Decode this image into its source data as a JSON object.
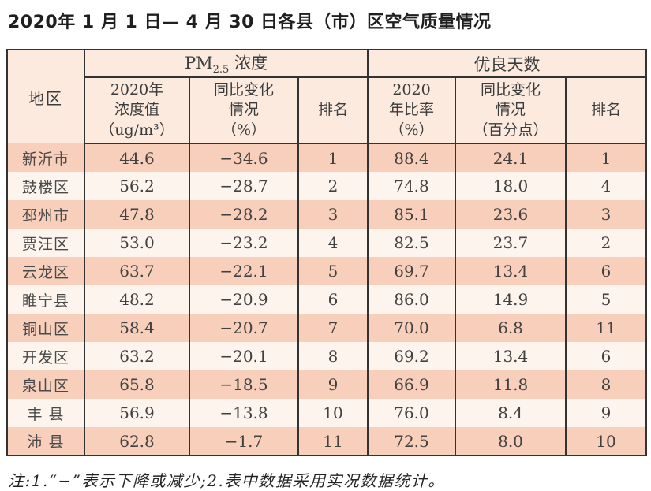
{
  "title": "2020年 1 月 1 日— 4 月 30 日各县（市）区空气质量情况",
  "table": {
    "region_header": "地区",
    "pm_group": {
      "prefix": "PM",
      "sub": "2.5",
      "suffix": " 浓度"
    },
    "good_group": "优良天数",
    "subheaders": {
      "pm_value": "2020年\n浓度值\n（ug/m³）",
      "pm_change": "同比变化\n情况\n（%）",
      "pm_rank": "排名",
      "good_rate": "2020\n年比率\n（%）",
      "good_change": "同比变化\n情况\n（百分点）",
      "good_rank": "排名"
    },
    "rows": [
      {
        "region": "新沂市",
        "pm_value": "44.6",
        "pm_change": "−34.6",
        "pm_rank": "1",
        "good_rate": "88.4",
        "good_change": "24.1",
        "good_rank": "1"
      },
      {
        "region": "鼓楼区",
        "pm_value": "56.2",
        "pm_change": "−28.7",
        "pm_rank": "2",
        "good_rate": "74.8",
        "good_change": "18.0",
        "good_rank": "4"
      },
      {
        "region": "邳州市",
        "pm_value": "47.8",
        "pm_change": "−28.2",
        "pm_rank": "3",
        "good_rate": "85.1",
        "good_change": "23.6",
        "good_rank": "3"
      },
      {
        "region": "贾汪区",
        "pm_value": "53.0",
        "pm_change": "−23.2",
        "pm_rank": "4",
        "good_rate": "82.5",
        "good_change": "23.7",
        "good_rank": "2"
      },
      {
        "region": "云龙区",
        "pm_value": "63.7",
        "pm_change": "−22.1",
        "pm_rank": "5",
        "good_rate": "69.7",
        "good_change": "13.4",
        "good_rank": "6"
      },
      {
        "region": "睢宁县",
        "pm_value": "48.2",
        "pm_change": "−20.9",
        "pm_rank": "6",
        "good_rate": "86.0",
        "good_change": "14.9",
        "good_rank": "5"
      },
      {
        "region": "铜山区",
        "pm_value": "58.4",
        "pm_change": "−20.7",
        "pm_rank": "7",
        "good_rate": "70.0",
        "good_change": "6.8",
        "good_rank": "11"
      },
      {
        "region": "开发区",
        "pm_value": "63.2",
        "pm_change": "−20.1",
        "pm_rank": "8",
        "good_rate": "69.2",
        "good_change": "13.4",
        "good_rank": "6"
      },
      {
        "region": "泉山区",
        "pm_value": "65.8",
        "pm_change": "−18.5",
        "pm_rank": "9",
        "good_rate": "66.9",
        "good_change": "11.8",
        "good_rank": "8"
      },
      {
        "region": "丰 县",
        "pm_value": "56.9",
        "pm_change": "−13.8",
        "pm_rank": "10",
        "good_rate": "76.0",
        "good_change": "8.4",
        "good_rank": "9"
      },
      {
        "region": "沛 县",
        "pm_value": "62.8",
        "pm_change": "−1.7",
        "pm_rank": "11",
        "good_rate": "72.5",
        "good_change": "8.0",
        "good_rank": "10"
      }
    ]
  },
  "note": "注:1.“−”表示下降或减少;2.表中数据采用实况数据统计。",
  "colors": {
    "row_shaded": "#f8cfba",
    "row_light": "#fdf4ed",
    "header_bg": "#fceadf",
    "border": "#333333"
  }
}
